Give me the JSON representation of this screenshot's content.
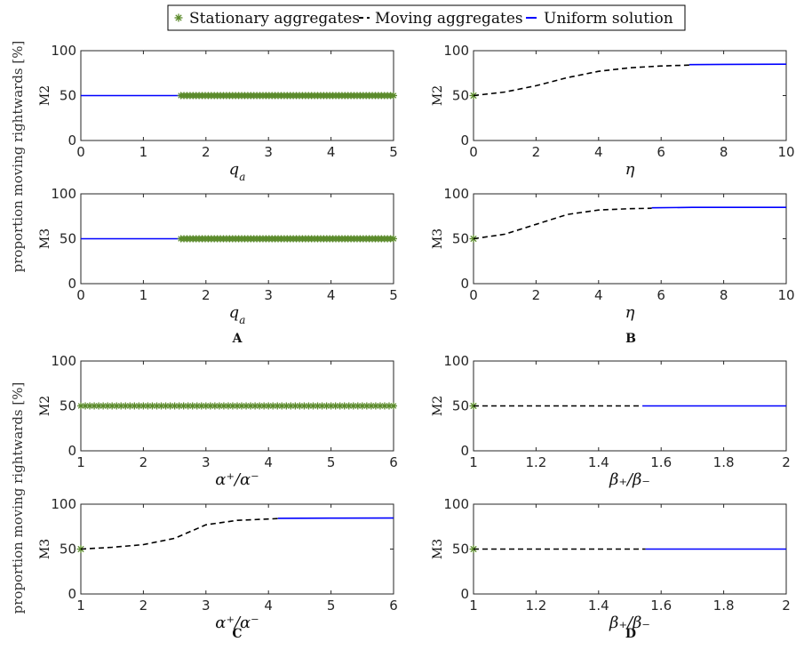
{
  "legend": {
    "entries": [
      {
        "label": "Stationary aggregates",
        "color": "#5a8a2a",
        "marker": "asterisk"
      },
      {
        "label": "Moving aggregates",
        "color": "#000000",
        "line": "dashed"
      },
      {
        "label": "Uniform solution",
        "color": "#0000ff",
        "line": "solid"
      }
    ]
  },
  "ylabel_common": "proportion moving rightwards [%]",
  "panel_labels": [
    "A",
    "B",
    "C",
    "D"
  ],
  "chart_data": [
    {
      "type": "line",
      "panel": "A",
      "ylabel": "M2",
      "xlabel": "q_a",
      "xlim": [
        0,
        5
      ],
      "ylim": [
        0,
        100
      ],
      "xticks": [
        0,
        1,
        2,
        3,
        4,
        5
      ],
      "yticks": [
        0,
        50,
        100
      ],
      "series": [
        {
          "kind": "uniform",
          "x": [
            0,
            1.6
          ],
          "y": [
            50,
            50
          ]
        },
        {
          "kind": "stationary",
          "x_range": [
            1.6,
            5
          ],
          "y": 50
        }
      ]
    },
    {
      "type": "line",
      "panel": "B",
      "ylabel": "M2",
      "xlabel": "η",
      "xlim": [
        0,
        10
      ],
      "ylim": [
        0,
        100
      ],
      "xticks": [
        0,
        2,
        4,
        6,
        8,
        10
      ],
      "yticks": [
        0,
        50,
        100
      ],
      "series": [
        {
          "kind": "stationary",
          "x": [
            0
          ],
          "y": [
            50
          ]
        },
        {
          "kind": "moving",
          "x": [
            0,
            1,
            2,
            3,
            4,
            5,
            6,
            6.9
          ],
          "y": [
            50,
            54,
            61,
            70,
            77,
            81,
            83,
            84
          ]
        },
        {
          "kind": "uniform",
          "x": [
            6.9,
            8,
            10
          ],
          "y": [
            84.5,
            84.8,
            85
          ]
        }
      ]
    },
    {
      "type": "line",
      "panel": "A",
      "ylabel": "M3",
      "xlabel": "q_a",
      "xlim": [
        0,
        5
      ],
      "ylim": [
        0,
        100
      ],
      "xticks": [
        0,
        1,
        2,
        3,
        4,
        5
      ],
      "yticks": [
        0,
        50,
        100
      ],
      "series": [
        {
          "kind": "uniform",
          "x": [
            0,
            1.6
          ],
          "y": [
            50,
            50
          ]
        },
        {
          "kind": "stationary",
          "x_range": [
            1.6,
            5
          ],
          "y": 50
        }
      ]
    },
    {
      "type": "line",
      "panel": "B",
      "ylabel": "M3",
      "xlabel": "η",
      "xlim": [
        0,
        10
      ],
      "ylim": [
        0,
        100
      ],
      "xticks": [
        0,
        2,
        4,
        6,
        8,
        10
      ],
      "yticks": [
        0,
        50,
        100
      ],
      "series": [
        {
          "kind": "stationary",
          "x": [
            0
          ],
          "y": [
            50
          ]
        },
        {
          "kind": "moving",
          "x": [
            0,
            1,
            2,
            3,
            4,
            5,
            5.7
          ],
          "y": [
            50,
            55,
            66,
            77,
            82,
            83.5,
            84
          ]
        },
        {
          "kind": "uniform",
          "x": [
            5.7,
            7,
            10
          ],
          "y": [
            84.5,
            85,
            85
          ]
        }
      ]
    },
    {
      "type": "line",
      "panel": "C",
      "ylabel": "M2",
      "xlabel": "α⁺/α⁻",
      "xlim": [
        1,
        6
      ],
      "ylim": [
        0,
        100
      ],
      "xticks": [
        1,
        2,
        3,
        4,
        5,
        6
      ],
      "yticks": [
        0,
        50,
        100
      ],
      "series": [
        {
          "kind": "stationary",
          "x_range": [
            1,
            6
          ],
          "y": 50
        }
      ]
    },
    {
      "type": "line",
      "panel": "D",
      "ylabel": "M2",
      "xlabel": "β₊/β₋",
      "xlim": [
        1,
        2
      ],
      "ylim": [
        0,
        100
      ],
      "xticks": [
        1,
        1.2,
        1.4,
        1.6,
        1.8,
        2
      ],
      "yticks": [
        0,
        50,
        100
      ],
      "series": [
        {
          "kind": "stationary",
          "x": [
            1
          ],
          "y": [
            50
          ]
        },
        {
          "kind": "moving",
          "x": [
            1,
            1.54
          ],
          "y": [
            50,
            50
          ]
        },
        {
          "kind": "uniform",
          "x": [
            1.54,
            2
          ],
          "y": [
            50,
            50
          ]
        }
      ]
    },
    {
      "type": "line",
      "panel": "C",
      "ylabel": "M3",
      "xlabel": "α⁺/α⁻",
      "xlim": [
        1,
        6
      ],
      "ylim": [
        0,
        100
      ],
      "xticks": [
        1,
        2,
        3,
        4,
        5,
        6
      ],
      "yticks": [
        0,
        50,
        100
      ],
      "series": [
        {
          "kind": "stationary",
          "x": [
            1
          ],
          "y": [
            50
          ]
        },
        {
          "kind": "moving",
          "x": [
            1,
            1.5,
            2,
            2.5,
            3,
            3.5,
            4,
            4.15
          ],
          "y": [
            50,
            52,
            55,
            62,
            77,
            82,
            83.5,
            84
          ]
        },
        {
          "kind": "uniform",
          "x": [
            4.15,
            5,
            6
          ],
          "y": [
            84.3,
            84.5,
            84.6
          ]
        }
      ]
    },
    {
      "type": "line",
      "panel": "D",
      "ylabel": "M3",
      "xlabel": "β₊/β₋",
      "xlim": [
        1,
        2
      ],
      "ylim": [
        0,
        100
      ],
      "xticks": [
        1,
        1.2,
        1.4,
        1.6,
        1.8,
        2
      ],
      "yticks": [
        0,
        50,
        100
      ],
      "series": [
        {
          "kind": "stationary",
          "x": [
            1
          ],
          "y": [
            50
          ]
        },
        {
          "kind": "moving",
          "x": [
            1,
            1.55
          ],
          "y": [
            50,
            50
          ]
        },
        {
          "kind": "uniform",
          "x": [
            1.55,
            2
          ],
          "y": [
            50,
            50
          ]
        }
      ]
    }
  ]
}
